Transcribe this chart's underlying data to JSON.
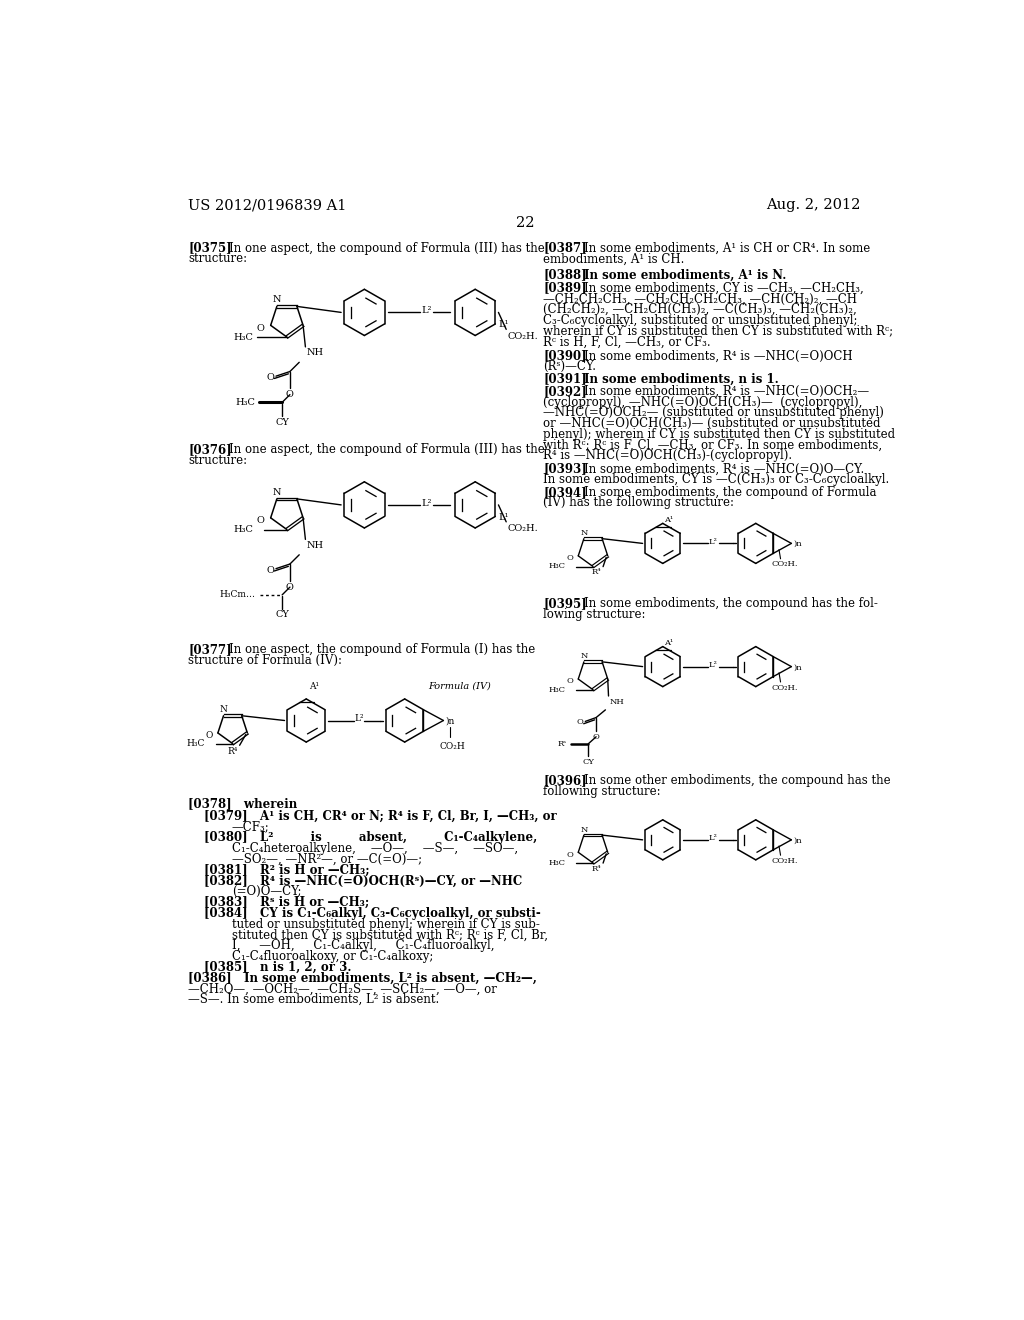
{
  "page_header_left": "US 2012/0196839 A1",
  "page_header_right": "Aug. 2, 2012",
  "page_number": "22",
  "background_color": "#ffffff",
  "text_color": "#000000",
  "fs": 8.5,
  "fs_small": 7.0,
  "fs_header": 10.5,
  "lm": 0.075,
  "rc": 0.525
}
